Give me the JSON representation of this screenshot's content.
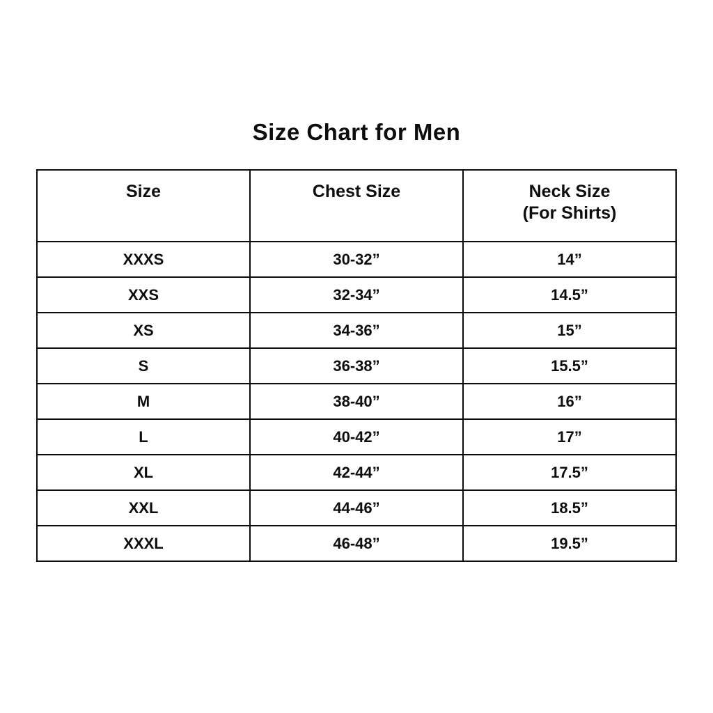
{
  "page": {
    "background_color": "#ffffff",
    "text_color": "#0d0d0d",
    "border_color": "#0d0d0d"
  },
  "title": "Size Chart for Men",
  "chart_data": {
    "type": "table",
    "title": "Size Chart for Men",
    "columns": [
      "Size",
      "Chest Size",
      "Neck Size (For Shirts)"
    ],
    "header": {
      "size": "Size",
      "chest": "Chest Size",
      "neck_line1": "Neck Size",
      "neck_line2": "(For Shirts)"
    },
    "rows": [
      {
        "size": "XXXS",
        "chest": "30-32”",
        "neck": "14”"
      },
      {
        "size": "XXS",
        "chest": "32-34”",
        "neck": "14.5”"
      },
      {
        "size": "XS",
        "chest": "34-36”",
        "neck": "15”"
      },
      {
        "size": "S",
        "chest": "36-38”",
        "neck": "15.5”"
      },
      {
        "size": "M",
        "chest": "38-40”",
        "neck": "16”"
      },
      {
        "size": "L",
        "chest": "40-42”",
        "neck": "17”"
      },
      {
        "size": "XL",
        "chest": "42-44”",
        "neck": "17.5”"
      },
      {
        "size": "XXL",
        "chest": "44-46”",
        "neck": "18.5”"
      },
      {
        "size": "XXXL",
        "chest": "46-48”",
        "neck": "19.5”"
      }
    ]
  }
}
